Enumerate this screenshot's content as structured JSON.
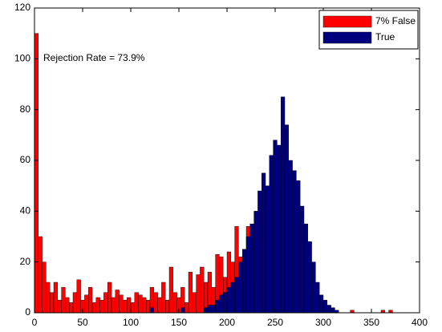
{
  "chart_data": {
    "type": "histogram",
    "annotation": "Rejection Rate = 73.9%",
    "bins": [
      0,
      4,
      8,
      12,
      16,
      20,
      24,
      28,
      32,
      36,
      40,
      44,
      48,
      52,
      56,
      60,
      64,
      68,
      72,
      76,
      80,
      84,
      88,
      92,
      96,
      100,
      104,
      108,
      112,
      116,
      120,
      124,
      128,
      132,
      136,
      140,
      144,
      148,
      152,
      156,
      160,
      164,
      168,
      172,
      176,
      180,
      184,
      188,
      192,
      196,
      200,
      204,
      208,
      212,
      216,
      220,
      224,
      228,
      232,
      236,
      240,
      244,
      248,
      252,
      256,
      260,
      264,
      268,
      272,
      276,
      280,
      284,
      288,
      292,
      296,
      300,
      304,
      308,
      312,
      316,
      320,
      324,
      328,
      332,
      336,
      340,
      344,
      348,
      352,
      356,
      360,
      364,
      368,
      372,
      376,
      380,
      384
    ],
    "series": [
      {
        "name": "7% False",
        "color": "#ff0000",
        "values": [
          110,
          30,
          20,
          12,
          8,
          12,
          5,
          10,
          6,
          4,
          8,
          13,
          5,
          7,
          10,
          4,
          6,
          5,
          8,
          12,
          6,
          9,
          7,
          5,
          6,
          4,
          8,
          7,
          6,
          5,
          10,
          8,
          6,
          12,
          5,
          18,
          8,
          6,
          10,
          4,
          16,
          8,
          15,
          18,
          12,
          16,
          10,
          23,
          22,
          14,
          24,
          20,
          34,
          22,
          20,
          34,
          10,
          5,
          3,
          2,
          0,
          0,
          0,
          0,
          0,
          0,
          0,
          0,
          0,
          0,
          0,
          0,
          0,
          0,
          0,
          0,
          0,
          0,
          0,
          0,
          0,
          0,
          1,
          0,
          0,
          0,
          0,
          0,
          0,
          0,
          1,
          0,
          1,
          0,
          0,
          0
        ]
      },
      {
        "name": "True",
        "color": "#00007f",
        "values": [
          0,
          0,
          0,
          0,
          0,
          0,
          0,
          0,
          0,
          0,
          0,
          0,
          0,
          0,
          0,
          0,
          0,
          0,
          0,
          0,
          0,
          0,
          0,
          0,
          0,
          0,
          0,
          0,
          0,
          0,
          2,
          0,
          0,
          0,
          0,
          0,
          0,
          0,
          2,
          0,
          0,
          0,
          0,
          0,
          2,
          3,
          3,
          5,
          7,
          8,
          10,
          12,
          14,
          20,
          25,
          30,
          35,
          40,
          48,
          55,
          50,
          62,
          68,
          66,
          85,
          74,
          60,
          56,
          52,
          42,
          35,
          28,
          20,
          12,
          7,
          5,
          3,
          2,
          1,
          0,
          0,
          0,
          0,
          0,
          0,
          0,
          0,
          0,
          0,
          0,
          0,
          0,
          0,
          0,
          0,
          0
        ]
      }
    ],
    "xlim": [
      0,
      400
    ],
    "xticks": [
      0,
      50,
      100,
      150,
      200,
      250,
      300,
      350,
      400
    ],
    "ylim": [
      0,
      120
    ],
    "yticks": [
      0,
      20,
      40,
      60,
      80,
      100,
      120
    ],
    "legend": "upper right"
  }
}
